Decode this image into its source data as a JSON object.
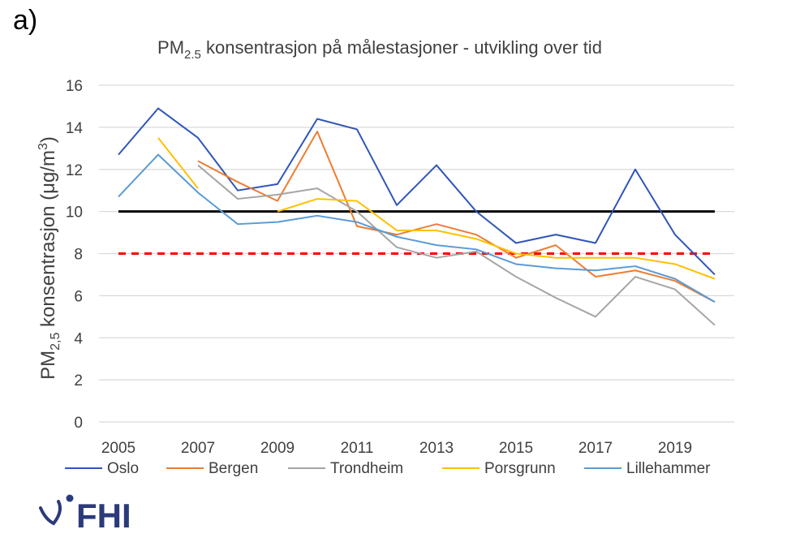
{
  "panel_label": "a)",
  "logo": {
    "text": "FHI",
    "color": "#2b3a7a"
  },
  "chart_data": {
    "type": "line",
    "title": {
      "main": "PM",
      "sub": "2.5",
      "rest": " konsentrasjon på målestasjoner - utvikling over tid"
    },
    "ylabel": {
      "main": "PM",
      "sub": "2,5",
      "rest": " konsentrasjon (μg/m",
      "sup": "3",
      "end": ")"
    },
    "xlabel": "",
    "x": [
      2005,
      2006,
      2007,
      2008,
      2009,
      2010,
      2011,
      2012,
      2013,
      2014,
      2015,
      2016,
      2017,
      2018,
      2019,
      2020
    ],
    "x_tick_labels": [
      "2005",
      "2007",
      "2009",
      "2011",
      "2013",
      "2015",
      "2017",
      "2019"
    ],
    "y_ticks": [
      0,
      2,
      4,
      6,
      8,
      10,
      12,
      14,
      16
    ],
    "ylim": [
      0,
      16
    ],
    "grid": true,
    "legend_position": "bottom",
    "series": [
      {
        "name": "Oslo",
        "color": "#2f55b8",
        "values": [
          12.7,
          14.9,
          13.5,
          11.0,
          11.3,
          14.4,
          13.9,
          10.3,
          12.2,
          10.0,
          8.5,
          8.9,
          8.5,
          12.0,
          8.9,
          7.0
        ]
      },
      {
        "name": "Bergen",
        "color": "#ed7d31",
        "values": [
          null,
          null,
          12.4,
          11.4,
          10.5,
          13.8,
          9.3,
          8.9,
          9.4,
          8.9,
          7.8,
          8.4,
          6.9,
          7.2,
          6.7,
          5.7
        ]
      },
      {
        "name": "Trondheim",
        "color": "#a5a5a5",
        "values": [
          null,
          null,
          12.2,
          10.6,
          10.8,
          11.1,
          10.0,
          8.3,
          7.8,
          8.1,
          6.9,
          5.9,
          5.0,
          6.9,
          6.3,
          4.6
        ]
      },
      {
        "name": "Porsgrunn",
        "color": "#ffc000",
        "values": [
          null,
          13.5,
          11.1,
          null,
          10.0,
          10.6,
          10.5,
          9.1,
          9.1,
          8.7,
          8.0,
          7.8,
          7.8,
          7.8,
          7.5,
          6.8
        ]
      },
      {
        "name": "Lillehammer",
        "color": "#5b9bd5",
        "values": [
          10.7,
          12.7,
          10.9,
          9.4,
          9.5,
          9.8,
          9.5,
          8.8,
          8.4,
          8.2,
          7.5,
          7.3,
          7.2,
          7.4,
          6.8,
          5.7
        ]
      }
    ],
    "reference_lines": [
      {
        "value": 10,
        "color": "#000000",
        "style": "solid"
      },
      {
        "value": 8,
        "color": "#ff0000",
        "style": "dashed"
      }
    ]
  }
}
